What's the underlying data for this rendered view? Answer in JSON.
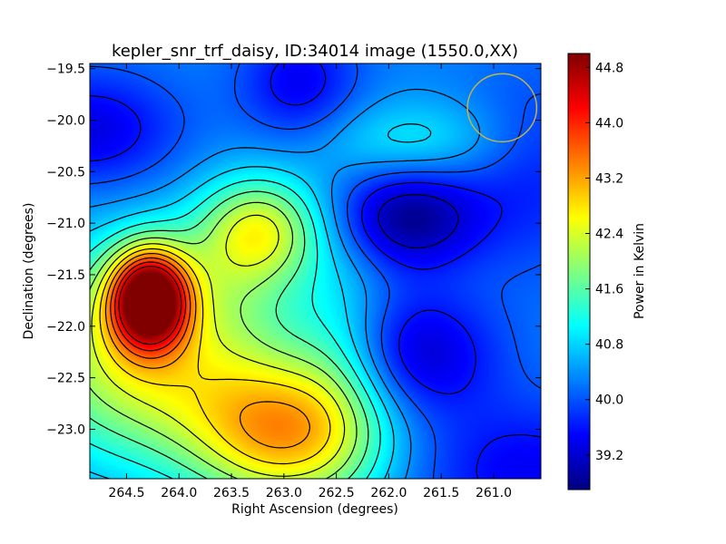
{
  "chart_data": {
    "type": "heatmap",
    "title": "kepler_snr_trf_daisy, ID:34014 image (1550.0,XX)",
    "xlabel": "Right Ascension (degrees)",
    "ylabel": "Declination (degrees)",
    "xlim": [
      264.85,
      260.55
    ],
    "ylim": [
      -23.48,
      -19.45
    ],
    "x_ticks": [
      264.5,
      264.0,
      263.5,
      263.0,
      262.5,
      262.0,
      261.5,
      261.0
    ],
    "x_tick_labels": [
      "264.5",
      "264.0",
      "263.5",
      "263.0",
      "262.5",
      "262.0",
      "261.5",
      "261.0"
    ],
    "y_ticks": [
      -19.5,
      -20.0,
      -20.5,
      -21.0,
      -21.5,
      -22.0,
      -22.5,
      -23.0
    ],
    "y_tick_labels": [
      "−19.5",
      "−20.0",
      "−20.5",
      "−21.0",
      "−21.5",
      "−22.0",
      "−22.5",
      "−23.0"
    ],
    "colorbar": {
      "label": "Power in Kelvin",
      "range": [
        38.7,
        45.0
      ],
      "ticks": [
        39.2,
        40.0,
        40.8,
        41.6,
        42.4,
        43.2,
        44.0,
        44.8
      ],
      "tick_labels": [
        "39.2",
        "40.0",
        "40.8",
        "41.6",
        "42.4",
        "43.2",
        "44.0",
        "44.8"
      ],
      "colormap": "jet"
    },
    "background_level": 40.3,
    "features": [
      {
        "kind": "max",
        "ra": 264.28,
        "dec": -21.73,
        "sra": 0.26,
        "sdec": 0.33,
        "amp": 4.5
      },
      {
        "kind": "max",
        "ra": 264.45,
        "dec": -22.05,
        "sra": 0.75,
        "sdec": 0.65,
        "amp": 1.7
      },
      {
        "kind": "max",
        "ra": 263.0,
        "dec": -23.1,
        "sra": 0.6,
        "sdec": 0.5,
        "amp": 2.0
      },
      {
        "kind": "max",
        "ra": 263.55,
        "dec": -22.75,
        "sra": 1.2,
        "sdec": 0.55,
        "amp": 1.2
      },
      {
        "kind": "max",
        "ra": 263.2,
        "dec": -21.05,
        "sra": 0.4,
        "sdec": 0.35,
        "amp": 1.6
      },
      {
        "kind": "max",
        "ra": 263.4,
        "dec": -21.4,
        "sra": 0.45,
        "sdec": 0.55,
        "amp": 0.8
      },
      {
        "kind": "max",
        "ra": 261.75,
        "dec": -20.2,
        "sra": 0.65,
        "sdec": 0.28,
        "amp": 0.7
      },
      {
        "kind": "max",
        "ra": 262.45,
        "dec": -22.2,
        "sra": 0.35,
        "sdec": 0.9,
        "amp": 0.6
      },
      {
        "kind": "min",
        "ra": 261.82,
        "dec": -20.95,
        "sra": 0.5,
        "sdec": 0.35,
        "amp": -1.5
      },
      {
        "kind": "min",
        "ra": 261.75,
        "dec": -22.3,
        "sra": 0.55,
        "sdec": 0.45,
        "amp": -1.3
      },
      {
        "kind": "min",
        "ra": 262.85,
        "dec": -19.65,
        "sra": 0.4,
        "sdec": 0.4,
        "amp": -0.9
      },
      {
        "kind": "min",
        "ra": 264.85,
        "dec": -20.1,
        "sra": 0.6,
        "sdec": 0.4,
        "amp": -1.0
      },
      {
        "kind": "min",
        "ra": 260.7,
        "dec": -23.4,
        "sra": 0.8,
        "sdec": 0.5,
        "amp": -0.9
      },
      {
        "kind": "min",
        "ra": 260.6,
        "dec": -20.5,
        "sra": 0.5,
        "sdec": 0.7,
        "amp": -0.6
      }
    ],
    "contour_levels": [
      39.2,
      39.6,
      40.0,
      40.4,
      40.8,
      41.2,
      41.6,
      42.0,
      42.4,
      42.8,
      43.2,
      43.6,
      44.0,
      44.4
    ],
    "beam_marker": {
      "ra": 260.92,
      "dec": -19.88,
      "radius_deg": 0.33,
      "color": "#c8b440"
    },
    "grid": false,
    "legend": "none"
  }
}
